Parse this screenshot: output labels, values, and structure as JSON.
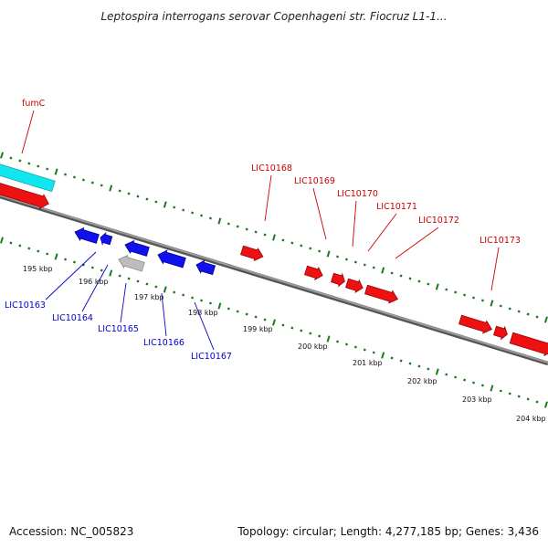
{
  "title": "Leptospira interrogans serovar Copenhageni str. Fiocruz L1-1...",
  "footer": {
    "accession": "Accession: NC_005823",
    "summary": "Topology: circular; Length: 4,277,185 bp; Genes: 3,436"
  },
  "colors": {
    "backbone": "#7d7d7d",
    "forward_gene": "#ee1111",
    "reverse_gene": "#1111ee",
    "highlight_gene": "#11e6ee",
    "pseudo_gene": "#bdbdbd",
    "tick": "#1f7a1f",
    "forward_label": "#cc0000",
    "reverse_label": "#0000cc"
  },
  "scale_labels": [
    "195 kbp",
    "196 kbp",
    "197 kbp",
    "198 kbp",
    "199 kbp",
    "200 kbp",
    "201 kbp",
    "202 kbp",
    "203 kbp",
    "204 kbp"
  ],
  "forward_labels": [
    "fumC",
    "LIC10168",
    "LIC10169",
    "LIC10170",
    "LIC10171",
    "LIC10172",
    "LIC10173"
  ],
  "reverse_labels": [
    "LIC10163",
    "LIC10164",
    "LIC10165",
    "LIC10166",
    "LIC10167"
  ]
}
